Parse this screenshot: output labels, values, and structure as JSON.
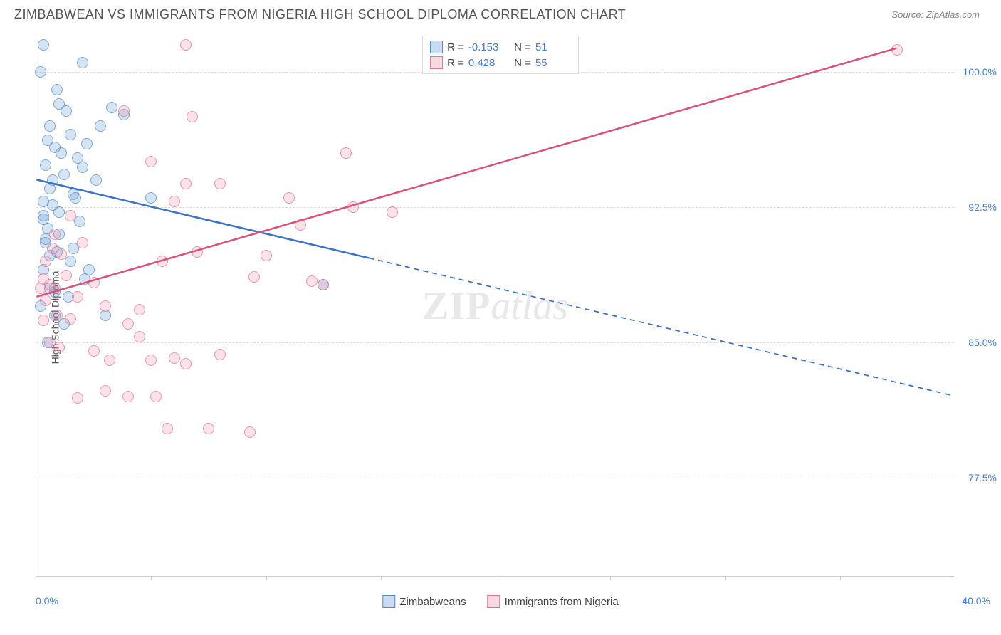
{
  "title": "ZIMBABWEAN VS IMMIGRANTS FROM NIGERIA HIGH SCHOOL DIPLOMA CORRELATION CHART",
  "source": "Source: ZipAtlas.com",
  "watermark_zip": "ZIP",
  "watermark_atlas": "atlas",
  "chart": {
    "type": "scatter",
    "y_axis_title": "High School Diploma",
    "xlim": [
      0,
      40
    ],
    "ylim": [
      72,
      102
    ],
    "x_min_label": "0.0%",
    "x_max_label": "40.0%",
    "y_ticks": [
      {
        "v": 77.5,
        "label": "77.5%"
      },
      {
        "v": 85.0,
        "label": "85.0%"
      },
      {
        "v": 92.5,
        "label": "92.5%"
      },
      {
        "v": 100.0,
        "label": "100.0%"
      }
    ],
    "x_ticks": [
      5,
      10,
      15,
      20,
      25,
      30,
      35
    ],
    "grid_color": "#dddddd",
    "background_color": "#ffffff",
    "border_color": "#cccccc",
    "marker_size": 16,
    "marker_opacity": 0.75,
    "series": [
      {
        "name": "Zimbabweans",
        "fill": "rgba(96,151,211,0.35)",
        "stroke": "#5a8bc9",
        "r_value": "-0.153",
        "n_value": "51",
        "trend": {
          "x1": 0,
          "y1": 94.0,
          "x2": 40,
          "y2": 82.0,
          "solid_until_x": 14.5,
          "color": "#3b72c2",
          "width": 2.5
        },
        "points": [
          [
            0.3,
            101.5
          ],
          [
            2.0,
            100.5
          ],
          [
            1.0,
            98.2
          ],
          [
            3.3,
            98.0
          ],
          [
            3.8,
            97.6
          ],
          [
            0.6,
            97.0
          ],
          [
            1.5,
            96.5
          ],
          [
            2.2,
            96.0
          ],
          [
            0.8,
            95.8
          ],
          [
            1.8,
            95.2
          ],
          [
            0.4,
            94.8
          ],
          [
            1.2,
            94.3
          ],
          [
            2.6,
            94.0
          ],
          [
            0.6,
            93.5
          ],
          [
            1.6,
            93.2
          ],
          [
            0.3,
            92.8
          ],
          [
            5.0,
            93.0
          ],
          [
            1.0,
            92.2
          ],
          [
            1.9,
            91.7
          ],
          [
            0.5,
            91.3
          ],
          [
            0.4,
            90.5
          ],
          [
            0.9,
            90.0
          ],
          [
            1.5,
            89.5
          ],
          [
            0.3,
            89.0
          ],
          [
            2.1,
            88.5
          ],
          [
            0.6,
            88.0
          ],
          [
            1.4,
            87.5
          ],
          [
            0.2,
            87.0
          ],
          [
            0.8,
            86.5
          ],
          [
            3.0,
            86.5
          ],
          [
            12.5,
            88.2
          ],
          [
            0.5,
            85.0
          ],
          [
            0.2,
            100.0
          ],
          [
            0.9,
            99.0
          ],
          [
            1.3,
            97.8
          ],
          [
            2.8,
            97.0
          ],
          [
            0.5,
            96.2
          ],
          [
            1.1,
            95.5
          ],
          [
            2.0,
            94.7
          ],
          [
            0.7,
            94.0
          ],
          [
            1.7,
            93.0
          ],
          [
            0.3,
            92.0
          ],
          [
            1.0,
            91.0
          ],
          [
            0.4,
            90.7
          ],
          [
            1.6,
            90.2
          ],
          [
            0.6,
            89.8
          ],
          [
            2.3,
            89.0
          ],
          [
            0.8,
            87.8
          ],
          [
            1.2,
            86.0
          ],
          [
            0.3,
            91.8
          ],
          [
            0.7,
            92.6
          ]
        ]
      },
      {
        "name": "Immigrants from Nigeria",
        "fill": "rgba(236,135,160,0.32)",
        "stroke": "#de7895",
        "r_value": "0.428",
        "n_value": "55",
        "trend": {
          "x1": 0,
          "y1": 87.5,
          "x2": 37.5,
          "y2": 101.3,
          "solid_until_x": 37.5,
          "color": "#d9517a",
          "width": 2.5
        },
        "points": [
          [
            6.5,
            101.5
          ],
          [
            3.8,
            97.8
          ],
          [
            6.8,
            97.5
          ],
          [
            5.0,
            95.0
          ],
          [
            6.5,
            93.8
          ],
          [
            8.0,
            93.8
          ],
          [
            6.0,
            92.8
          ],
          [
            11.0,
            93.0
          ],
          [
            13.5,
            95.5
          ],
          [
            13.8,
            92.5
          ],
          [
            11.5,
            91.5
          ],
          [
            15.5,
            92.2
          ],
          [
            37.5,
            101.2
          ],
          [
            0.3,
            88.5
          ],
          [
            0.6,
            88.2
          ],
          [
            0.2,
            88.0
          ],
          [
            0.8,
            88.0
          ],
          [
            1.3,
            88.7
          ],
          [
            0.4,
            87.3
          ],
          [
            1.8,
            87.5
          ],
          [
            0.9,
            86.5
          ],
          [
            1.5,
            86.3
          ],
          [
            2.5,
            88.3
          ],
          [
            3.0,
            87.0
          ],
          [
            0.6,
            85.0
          ],
          [
            4.0,
            86.0
          ],
          [
            4.5,
            85.3
          ],
          [
            5.5,
            89.5
          ],
          [
            9.5,
            88.6
          ],
          [
            12.0,
            88.4
          ],
          [
            12.5,
            88.2
          ],
          [
            2.5,
            84.5
          ],
          [
            3.2,
            84.0
          ],
          [
            5.0,
            84.0
          ],
          [
            6.0,
            84.1
          ],
          [
            6.5,
            83.8
          ],
          [
            8.0,
            84.3
          ],
          [
            1.8,
            81.9
          ],
          [
            3.0,
            82.3
          ],
          [
            4.0,
            82.0
          ],
          [
            5.2,
            82.0
          ],
          [
            5.7,
            80.2
          ],
          [
            7.5,
            80.2
          ],
          [
            9.3,
            80.0
          ],
          [
            4.5,
            86.8
          ],
          [
            7.0,
            90.0
          ],
          [
            10.0,
            89.8
          ],
          [
            0.4,
            89.5
          ],
          [
            0.7,
            90.2
          ],
          [
            1.1,
            89.9
          ],
          [
            2.0,
            90.5
          ],
          [
            1.5,
            92.0
          ],
          [
            0.8,
            91.0
          ],
          [
            0.3,
            86.2
          ],
          [
            1.0,
            84.7
          ]
        ]
      }
    ]
  },
  "legend_top_prefix_r": "R = ",
  "legend_top_prefix_n": "N = ",
  "legend_color_label": "#4a7fc4"
}
